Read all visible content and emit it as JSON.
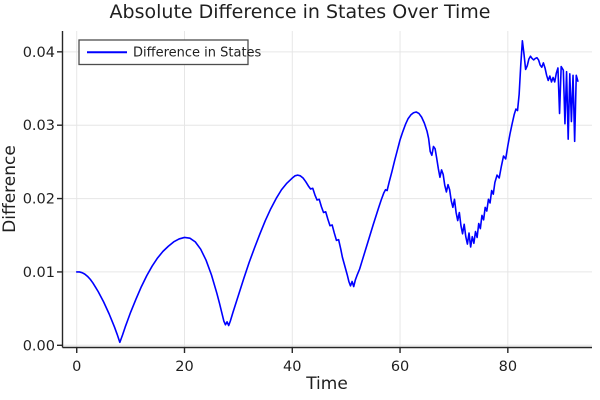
{
  "title": "Absolute Difference in States Over Time",
  "colors": {
    "line": "#0000ff",
    "grid": "#e6e6e6",
    "axis": "#262626",
    "text": "#1f1f1f",
    "legend_border": "#4d4d4d",
    "background": "#ffffff"
  },
  "legend": {
    "entries": [
      {
        "label": "Difference in States",
        "color": "#0000ff"
      }
    ]
  },
  "chart_data": {
    "type": "line",
    "title": "Absolute Difference in States Over Time",
    "xlabel": "Time",
    "ylabel": "Difference",
    "xlim": [
      -2.64,
      95.62
    ],
    "ylim": [
      -0.0003,
      0.04284
    ],
    "xticks": [
      0,
      20,
      40,
      60,
      80
    ],
    "xtick_labels": [
      "0",
      "20",
      "40",
      "60",
      "80"
    ],
    "yticks": [
      0,
      0.01,
      0.02,
      0.03,
      0.04
    ],
    "ytick_labels": [
      "0.00",
      "0.01",
      "0.02",
      "0.03",
      "0.04"
    ],
    "grid": true,
    "legend_position": "top-left",
    "series": [
      {
        "name": "Difference in States",
        "color": "#0000ff",
        "points": [
          [
            0,
            0.01
          ],
          [
            0.5,
            0.01
          ],
          [
            1,
            0.0099
          ],
          [
            1.5,
            0.0097
          ],
          [
            2,
            0.0094
          ],
          [
            2.5,
            0.009
          ],
          [
            3,
            0.0085
          ],
          [
            3.5,
            0.0079
          ],
          [
            4,
            0.0073
          ],
          [
            4.5,
            0.0066
          ],
          [
            5,
            0.0059
          ],
          [
            5.5,
            0.0051
          ],
          [
            6,
            0.0043
          ],
          [
            6.5,
            0.0034
          ],
          [
            7,
            0.0025
          ],
          [
            7.5,
            0.0015
          ],
          [
            8,
            0.0004
          ],
          [
            8.5,
            0.0014
          ],
          [
            9,
            0.0025
          ],
          [
            9.5,
            0.0035
          ],
          [
            10,
            0.0045
          ],
          [
            11,
            0.0063
          ],
          [
            12,
            0.008
          ],
          [
            13,
            0.0095
          ],
          [
            14,
            0.0108
          ],
          [
            15,
            0.0119
          ],
          [
            16,
            0.0128
          ],
          [
            17,
            0.0135
          ],
          [
            18,
            0.0141
          ],
          [
            19,
            0.0145
          ],
          [
            20,
            0.0147
          ],
          [
            21,
            0.0146
          ],
          [
            22,
            0.0141
          ],
          [
            23,
            0.0131
          ],
          [
            24,
            0.0116
          ],
          [
            25,
            0.0096
          ],
          [
            26,
            0.0071
          ],
          [
            26.5,
            0.0057
          ],
          [
            27,
            0.0042
          ],
          [
            27.3,
            0.0033
          ],
          [
            27.6,
            0.0028
          ],
          [
            27.9,
            0.0032
          ],
          [
            28.2,
            0.0027
          ],
          [
            28.5,
            0.0033
          ],
          [
            29,
            0.0045
          ],
          [
            30,
            0.0068
          ],
          [
            31,
            0.0091
          ],
          [
            32,
            0.0113
          ],
          [
            33,
            0.0133
          ],
          [
            34,
            0.0152
          ],
          [
            35,
            0.017
          ],
          [
            36,
            0.0186
          ],
          [
            37,
            0.02
          ],
          [
            38,
            0.0212
          ],
          [
            39,
            0.0221
          ],
          [
            40,
            0.0228
          ],
          [
            40.5,
            0.0231
          ],
          [
            41,
            0.0232
          ],
          [
            41.5,
            0.0231
          ],
          [
            42,
            0.0228
          ],
          [
            42.5,
            0.0223
          ],
          [
            43,
            0.0217
          ],
          [
            43.4,
            0.0213
          ],
          [
            43.8,
            0.0214
          ],
          [
            44.2,
            0.0205
          ],
          [
            44.6,
            0.0198
          ],
          [
            45,
            0.0199
          ],
          [
            45.4,
            0.0189
          ],
          [
            45.8,
            0.0181
          ],
          [
            46.2,
            0.0182
          ],
          [
            46.6,
            0.0172
          ],
          [
            47,
            0.0163
          ],
          [
            47.4,
            0.0164
          ],
          [
            47.8,
            0.0153
          ],
          [
            48.2,
            0.0143
          ],
          [
            48.6,
            0.0144
          ],
          [
            49,
            0.0131
          ],
          [
            49.3,
            0.012
          ],
          [
            49.6,
            0.0112
          ],
          [
            49.9,
            0.0104
          ],
          [
            50.2,
            0.0096
          ],
          [
            50.5,
            0.0087
          ],
          [
            50.8,
            0.0081
          ],
          [
            51.1,
            0.0087
          ],
          [
            51.4,
            0.008
          ],
          [
            51.7,
            0.0089
          ],
          [
            52,
            0.0095
          ],
          [
            52.5,
            0.0104
          ],
          [
            53,
            0.0116
          ],
          [
            54,
            0.014
          ],
          [
            55,
            0.0164
          ],
          [
            56,
            0.0187
          ],
          [
            56.5,
            0.0198
          ],
          [
            57,
            0.0208
          ],
          [
            57.3,
            0.0212
          ],
          [
            57.6,
            0.0211
          ],
          [
            58,
            0.0223
          ],
          [
            58.5,
            0.0237
          ],
          [
            59,
            0.0252
          ],
          [
            59.5,
            0.0266
          ],
          [
            60,
            0.028
          ],
          [
            60.5,
            0.0291
          ],
          [
            61,
            0.0301
          ],
          [
            61.5,
            0.0309
          ],
          [
            62,
            0.0314
          ],
          [
            62.5,
            0.0317
          ],
          [
            63,
            0.0318
          ],
          [
            63.5,
            0.0316
          ],
          [
            64,
            0.0311
          ],
          [
            64.5,
            0.0303
          ],
          [
            65,
            0.0292
          ],
          [
            65.3,
            0.0282
          ],
          [
            65.6,
            0.0264
          ],
          [
            65.9,
            0.0259
          ],
          [
            66.2,
            0.0271
          ],
          [
            66.5,
            0.0268
          ],
          [
            66.8,
            0.0255
          ],
          [
            67.1,
            0.0241
          ],
          [
            67.4,
            0.0229
          ],
          [
            67.7,
            0.0239
          ],
          [
            68,
            0.0233
          ],
          [
            68.3,
            0.0218
          ],
          [
            68.6,
            0.0209
          ],
          [
            68.9,
            0.0219
          ],
          [
            69.2,
            0.0212
          ],
          [
            69.5,
            0.0197
          ],
          [
            69.8,
            0.0188
          ],
          [
            70.1,
            0.0199
          ],
          [
            70.4,
            0.0181
          ],
          [
            70.7,
            0.017
          ],
          [
            71,
            0.0181
          ],
          [
            71.3,
            0.0163
          ],
          [
            71.6,
            0.0152
          ],
          [
            71.9,
            0.0165
          ],
          [
            72.2,
            0.0148
          ],
          [
            72.5,
            0.0138
          ],
          [
            72.8,
            0.0153
          ],
          [
            73.1,
            0.0134
          ],
          [
            73.4,
            0.0148
          ],
          [
            73.7,
            0.0139
          ],
          [
            74,
            0.0155
          ],
          [
            74.3,
            0.0147
          ],
          [
            74.6,
            0.0166
          ],
          [
            74.9,
            0.0159
          ],
          [
            75.2,
            0.0177
          ],
          [
            75.5,
            0.0171
          ],
          [
            75.8,
            0.0188
          ],
          [
            76.1,
            0.0183
          ],
          [
            76.4,
            0.0199
          ],
          [
            76.7,
            0.0194
          ],
          [
            77,
            0.0211
          ],
          [
            77.3,
            0.0206
          ],
          [
            77.6,
            0.0222
          ],
          [
            78,
            0.0232
          ],
          [
            78.4,
            0.0228
          ],
          [
            78.8,
            0.0244
          ],
          [
            79.2,
            0.0258
          ],
          [
            79.6,
            0.0254
          ],
          [
            80,
            0.0272
          ],
          [
            80.4,
            0.0288
          ],
          [
            80.8,
            0.0302
          ],
          [
            81.2,
            0.0315
          ],
          [
            81.5,
            0.0322
          ],
          [
            81.8,
            0.032
          ],
          [
            82.1,
            0.0342
          ],
          [
            82.4,
            0.0382
          ],
          [
            82.7,
            0.0415
          ],
          [
            83,
            0.0397
          ],
          [
            83.3,
            0.0376
          ],
          [
            83.6,
            0.0381
          ],
          [
            83.9,
            0.039
          ],
          [
            84.2,
            0.0394
          ],
          [
            84.5,
            0.0391
          ],
          [
            84.8,
            0.0389
          ],
          [
            85.1,
            0.0391
          ],
          [
            85.4,
            0.0392
          ],
          [
            85.7,
            0.0389
          ],
          [
            86,
            0.0382
          ],
          [
            86.3,
            0.0379
          ],
          [
            86.6,
            0.0385
          ],
          [
            86.9,
            0.0378
          ],
          [
            87.2,
            0.0368
          ],
          [
            87.5,
            0.0361
          ],
          [
            87.8,
            0.0367
          ],
          [
            88.1,
            0.0359
          ],
          [
            88.4,
            0.0365
          ],
          [
            88.7,
            0.0359
          ],
          [
            89,
            0.0371
          ],
          [
            89.3,
            0.0378
          ],
          [
            89.6,
            0.0316
          ],
          [
            89.9,
            0.038
          ],
          [
            90.3,
            0.0375
          ],
          [
            90.6,
            0.0302
          ],
          [
            90.9,
            0.0373
          ],
          [
            91.2,
            0.0281
          ],
          [
            91.5,
            0.037
          ],
          [
            91.8,
            0.0305
          ],
          [
            92.1,
            0.0368
          ],
          [
            92.4,
            0.0278
          ],
          [
            92.7,
            0.0368
          ],
          [
            93,
            0.036
          ]
        ]
      }
    ]
  }
}
